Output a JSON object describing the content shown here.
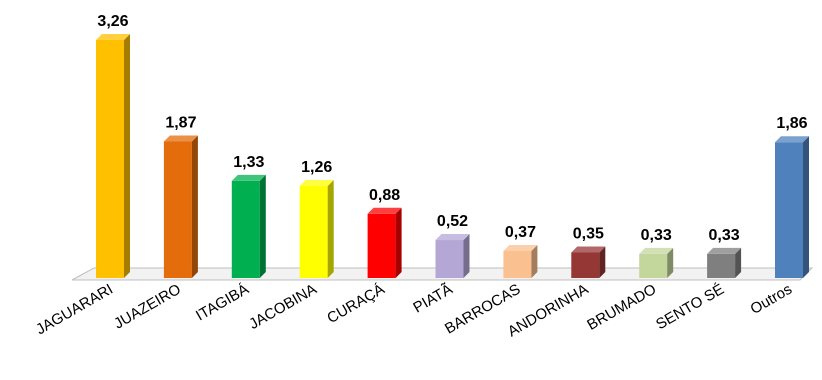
{
  "chart_data": {
    "type": "bar",
    "title": "",
    "xlabel": "",
    "ylabel": "",
    "ylim": [
      0,
      3.26
    ],
    "grid": false,
    "legend": "none",
    "bar_style": "3d",
    "categories": [
      "JAGUARARI",
      "JUAZEIRO",
      "ITAGIBÁ",
      "JACOBINA",
      "CURAÇÁ",
      "PIATÃ",
      "BARROCAS",
      "ANDORINHA",
      "BRUMADO",
      "SENTO SÉ",
      "Outros"
    ],
    "values": [
      3.26,
      1.87,
      1.33,
      1.26,
      0.88,
      0.52,
      0.37,
      0.35,
      0.33,
      0.33,
      1.86
    ],
    "value_labels": [
      "3,26",
      "1,87",
      "1,33",
      "1,26",
      "0,88",
      "0,52",
      "0,37",
      "0,35",
      "0,33",
      "0,33",
      "1,86"
    ],
    "colors": [
      "#FFC000",
      "#E46C0A",
      "#00B050",
      "#FFFF00",
      "#FF0000",
      "#B4A7D6",
      "#FAC090",
      "#953735",
      "#C3D69B",
      "#7F7F7F",
      "#4F81BD"
    ]
  }
}
